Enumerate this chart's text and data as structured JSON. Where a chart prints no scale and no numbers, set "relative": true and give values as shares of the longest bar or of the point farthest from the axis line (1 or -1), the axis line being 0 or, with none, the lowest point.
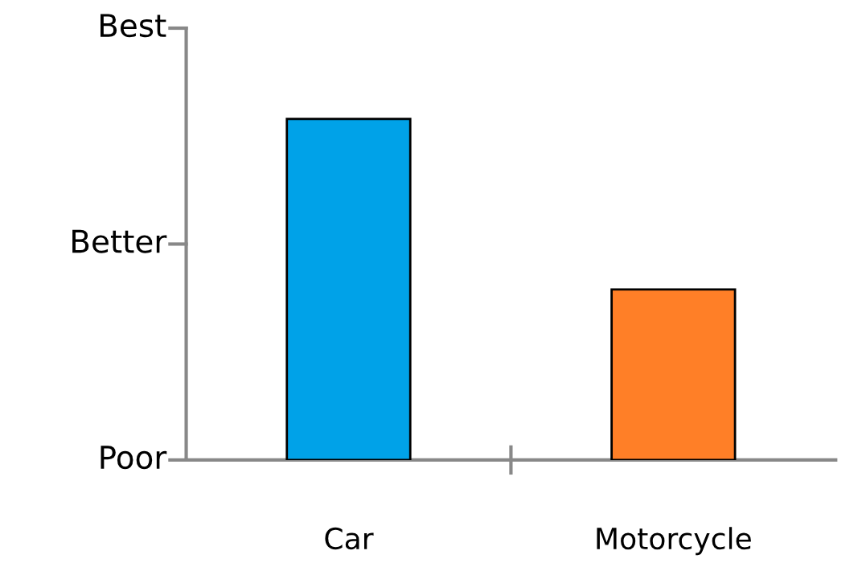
{
  "chart_data": {
    "type": "bar",
    "categories": [
      "Car",
      "Motorcycle"
    ],
    "values": [
      1,
      0.5
    ],
    "colors": [
      "#00a2e8",
      "#ff7f27"
    ],
    "relative": true,
    "annotations": [
      "Poor",
      "Better",
      "Best"
    ]
  }
}
